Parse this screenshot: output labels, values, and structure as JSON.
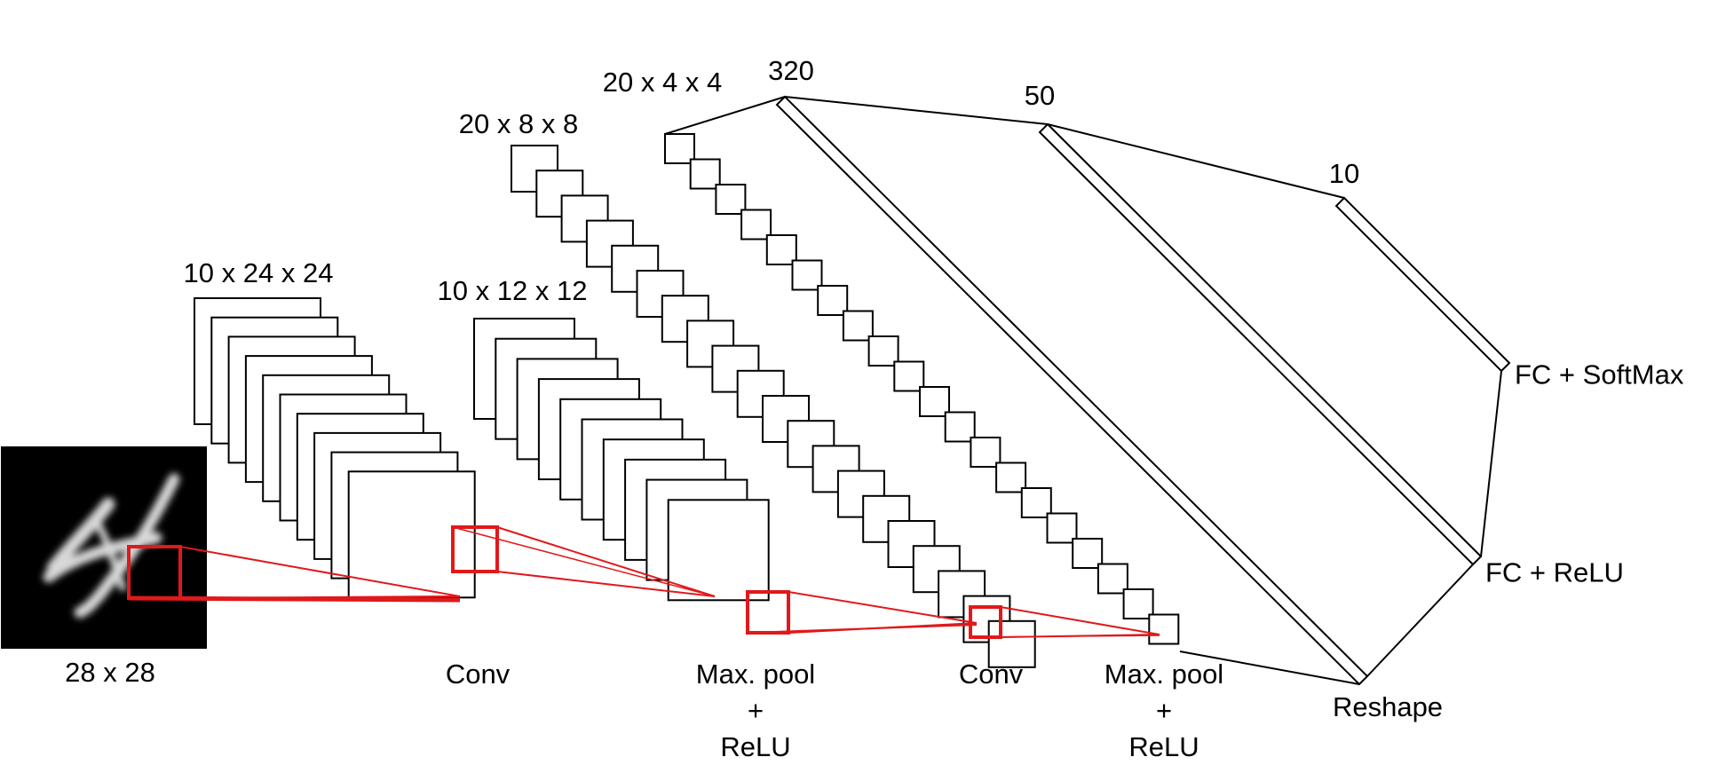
{
  "diagram": {
    "input_label": "28 x 28",
    "layers": [
      {
        "id": "conv1",
        "dims": "10 x 24 x 24"
      },
      {
        "id": "pool1",
        "dims": "10 x 12 x 12"
      },
      {
        "id": "conv2",
        "dims": "20 x 8 x 8"
      },
      {
        "id": "pool2",
        "dims": "20 x 4 x 4"
      },
      {
        "id": "flatten",
        "dims": "320"
      },
      {
        "id": "fc1",
        "dims": "50"
      },
      {
        "id": "fc2",
        "dims": "10"
      }
    ],
    "operations": {
      "conv1": [
        "Conv"
      ],
      "pool1": [
        "Max. pool",
        "+",
        "ReLU"
      ],
      "conv2": [
        "Conv"
      ],
      "pool2": [
        "Max. pool",
        "+",
        "ReLU"
      ],
      "reshape": [
        "Reshape"
      ],
      "fc1": [
        "FC + ReLU"
      ],
      "fc2": [
        "FC + SoftMax"
      ]
    },
    "colors": {
      "stroke": "#000000",
      "receptive_field": "#e0191b",
      "input_background": "#000000",
      "digit": "#d8d8d8"
    },
    "icons": {
      "input_image": "handwritten-digit-image"
    }
  }
}
